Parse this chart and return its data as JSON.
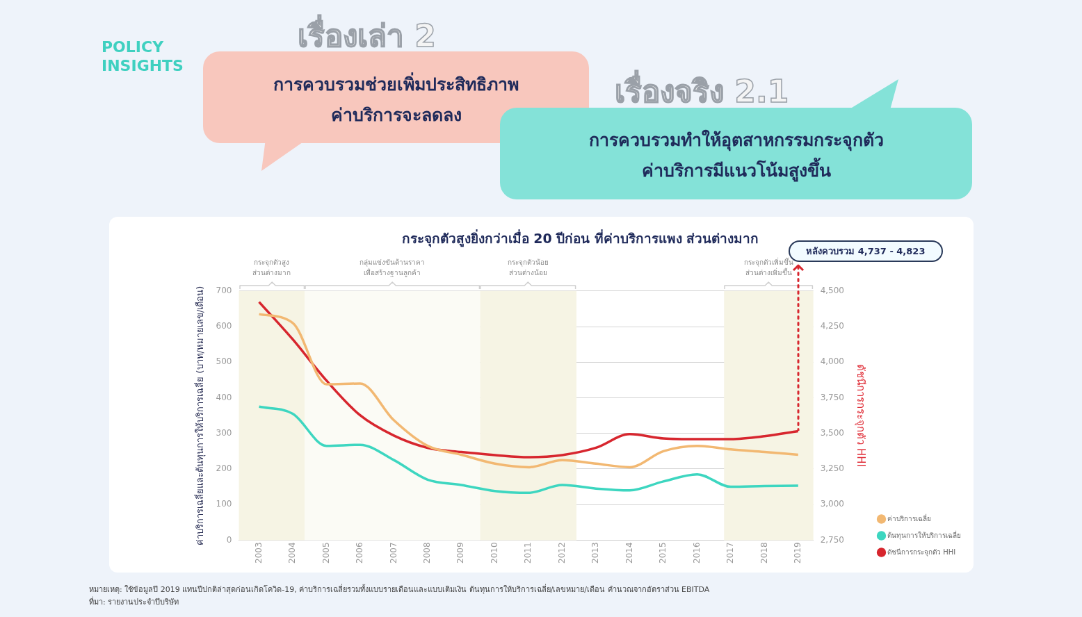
{
  "chart_data": {
    "type": "line",
    "title": "กระจุกตัวสูงยิ่งกว่าเมื่อ 20 ปีก่อน ที่ค่าบริการแพง ส่วนต่างมาก",
    "ylabel": "ค่าบริการเฉลี่ยและต้นทุนการให้บริการเฉลี่ย (บาท/หมายเลข/เดือน)",
    "y2label": "ดัชนีการกระจุกตัว HHI",
    "x": [
      2003,
      2004,
      2005,
      2006,
      2007,
      2008,
      2009,
      2010,
      2011,
      2012,
      2013,
      2014,
      2015,
      2016,
      2017,
      2018,
      2019
    ],
    "series": [
      {
        "name": "ค่าบริการเฉลี่ย",
        "color": "#f2b872",
        "values": [
          635,
          610,
          438,
          440,
          337,
          265,
          240,
          215,
          205,
          225,
          215,
          205,
          250,
          265,
          255,
          248,
          240
        ]
      },
      {
        "name": "ต้นทุนการให้บริการเฉลี่ย",
        "color": "#3dd6c0",
        "values": [
          375,
          355,
          265,
          268,
          225,
          170,
          155,
          138,
          133,
          155,
          145,
          140,
          165,
          185,
          150,
          152,
          153
        ]
      },
      {
        "name": "ดัชนีการกระจุกตัว HHI",
        "color": "#d7262e",
        "axis": "y2",
        "values": [
          4423,
          4160,
          3871,
          3627,
          3485,
          3399,
          3369,
          3348,
          3333,
          3348,
          3399,
          3495,
          3465,
          3460,
          3460,
          3480,
          3516
        ]
      }
    ],
    "xlim": [
      2002.4,
      2019.45
    ],
    "xticks": [
      2003,
      2004,
      2005,
      2006,
      2007,
      2008,
      2009,
      2010,
      2011,
      2012,
      2013,
      2014,
      2015,
      2016,
      2017,
      2018,
      2019
    ],
    "ylim": [
      0,
      700
    ],
    "yticks": [
      0,
      100,
      200,
      300,
      400,
      500,
      600,
      700
    ],
    "y2lim": [
      2750,
      4500
    ],
    "y2ticks": [
      {
        "value": 2750,
        "label": "2,750"
      },
      {
        "value": 3000,
        "label": "3,000"
      },
      {
        "value": 3250,
        "label": "3,250"
      },
      {
        "value": 3500,
        "label": "3,500"
      },
      {
        "value": 3750,
        "label": "3,750"
      },
      {
        "value": 4000,
        "label": "4,000"
      },
      {
        "value": 4250,
        "label": "4,250"
      },
      {
        "value": 4500,
        "label": "4,500"
      }
    ],
    "bands": [
      {
        "axis": "x",
        "from": 2002.4,
        "to": 2004.35,
        "label": "กระจุกตัวสูง\nส่วนต่างมาก",
        "color": "#f6f4e4"
      },
      {
        "axis": "x",
        "from": 2004.35,
        "to": 2009.56,
        "label": "กลุ่มแข่งขันด้านราคา\nเพื่อสร้างฐานลูกค้า",
        "color": "#fbfbf5"
      },
      {
        "axis": "x",
        "from": 2009.56,
        "to": 2012.42,
        "label": "กระจุกตัวน้อย\nส่วนต่างน้อย",
        "color": "#f6f4e4"
      },
      {
        "axis": "x",
        "from": 2016.8,
        "to": 2019.45,
        "label": "กระจุกตัวเพิ่มขึ้น\nส่วนต่างเพิ่มขึ้น",
        "color": "#f6f4e4"
      }
    ],
    "annotations": [
      "POLICY INSIGHTS",
      "เรื่องเล่า 2",
      "การควบรวมช่วยเพิ่มประสิทธิภาพ\nค่าบริการจะลดลง",
      "เรื่องจริง 2.1",
      "การควบรวมทำให้อุตสาหกรรมกระจุกตัว\nค่าบริการมีแนวโน้มสูงขึ้น",
      "หลังควบรวม 4,737 - 4,823",
      "หมายเหตุ: ใช้ข้อมูลปี 2019 แทนปีปกติล่าสุดก่อนเกิดโควิด-19, ค่าบริการเฉลี่ยรวมทั้งแบบรายเดือนและแบบเติมเงิน ต้นทุนการให้บริการเฉลี่ย/เลขหมาย/เดือน คำนวณจากอัตราส่วน EBITDA\nที่มา: รายงานประจำปีบริษัท"
    ],
    "grid": "y",
    "legend": "bottom right",
    "line_style": "solid",
    "marker": "none"
  }
}
